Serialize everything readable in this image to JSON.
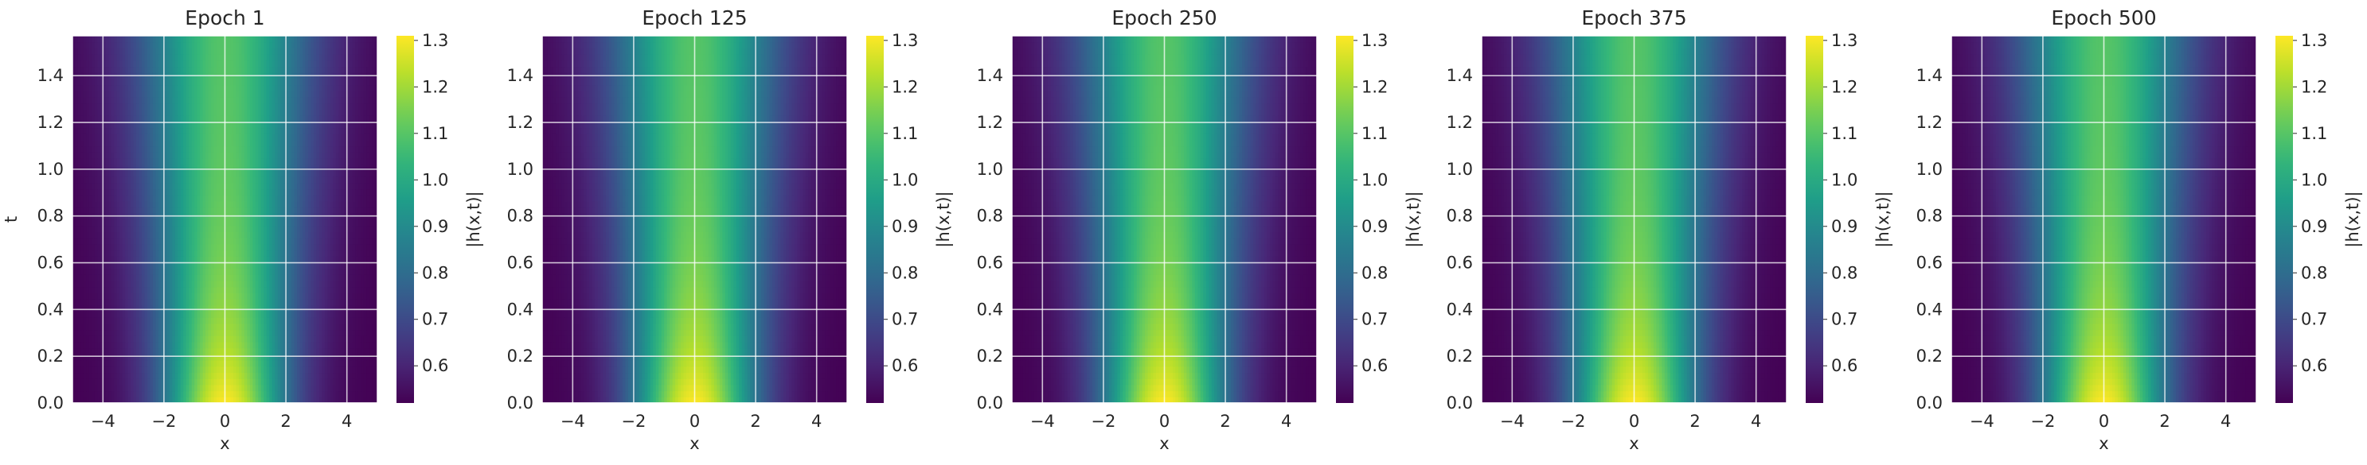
{
  "chart_data": [
    {
      "type": "heatmap",
      "title": "Epoch 1",
      "xlabel": "x",
      "ylabel": "t",
      "colorbar_label": "|h(x,t)|",
      "xlim": [
        -5,
        5
      ],
      "ylim": [
        0,
        1.5708
      ],
      "x_ticks": [
        -4,
        -2,
        0,
        2,
        4
      ],
      "y_ticks": [
        0.0,
        0.2,
        0.4,
        0.6,
        0.8,
        1.0,
        1.2,
        1.4
      ],
      "colorbar_range": [
        0.52,
        1.31
      ],
      "colorbar_ticks": [
        0.6,
        0.7,
        0.8,
        0.9,
        1.0,
        1.1,
        1.2,
        1.3
      ],
      "colormap": "viridis",
      "peak_value": 1.31,
      "min_value": 0.52,
      "grid": true
    },
    {
      "type": "heatmap",
      "title": "Epoch 125",
      "xlabel": "x",
      "ylabel": "",
      "colorbar_label": "|h(x,t)|",
      "xlim": [
        -5,
        5
      ],
      "ylim": [
        0,
        1.5708
      ],
      "x_ticks": [
        -4,
        -2,
        0,
        2,
        4
      ],
      "y_ticks": [
        0.0,
        0.2,
        0.4,
        0.6,
        0.8,
        1.0,
        1.2,
        1.4
      ],
      "colorbar_range": [
        0.52,
        1.31
      ],
      "colorbar_ticks": [
        0.6,
        0.7,
        0.8,
        0.9,
        1.0,
        1.1,
        1.2,
        1.3
      ],
      "colormap": "viridis",
      "peak_value": 1.31,
      "min_value": 0.52,
      "grid": true
    },
    {
      "type": "heatmap",
      "title": "Epoch 250",
      "xlabel": "x",
      "ylabel": "",
      "colorbar_label": "|h(x,t)|",
      "xlim": [
        -5,
        5
      ],
      "ylim": [
        0,
        1.5708
      ],
      "x_ticks": [
        -4,
        -2,
        0,
        2,
        4
      ],
      "y_ticks": [
        0.0,
        0.2,
        0.4,
        0.6,
        0.8,
        1.0,
        1.2,
        1.4
      ],
      "colorbar_range": [
        0.52,
        1.31
      ],
      "colorbar_ticks": [
        0.6,
        0.7,
        0.8,
        0.9,
        1.0,
        1.1,
        1.2,
        1.3
      ],
      "colormap": "viridis",
      "peak_value": 1.31,
      "min_value": 0.52,
      "grid": true
    },
    {
      "type": "heatmap",
      "title": "Epoch 375",
      "xlabel": "x",
      "ylabel": "",
      "colorbar_label": "|h(x,t)|",
      "xlim": [
        -5,
        5
      ],
      "ylim": [
        0,
        1.5708
      ],
      "x_ticks": [
        -4,
        -2,
        0,
        2,
        4
      ],
      "y_ticks": [
        0.0,
        0.2,
        0.4,
        0.6,
        0.8,
        1.0,
        1.2,
        1.4
      ],
      "colorbar_range": [
        0.52,
        1.31
      ],
      "colorbar_ticks": [
        0.6,
        0.7,
        0.8,
        0.9,
        1.0,
        1.1,
        1.2,
        1.3
      ],
      "colormap": "viridis",
      "peak_value": 1.31,
      "min_value": 0.52,
      "grid": true
    },
    {
      "type": "heatmap",
      "title": "Epoch 500",
      "xlabel": "x",
      "ylabel": "",
      "colorbar_label": "|h(x,t)|",
      "xlim": [
        -5,
        5
      ],
      "ylim": [
        0,
        1.5708
      ],
      "x_ticks": [
        -4,
        -2,
        0,
        2,
        4
      ],
      "y_ticks": [
        0.0,
        0.2,
        0.4,
        0.6,
        0.8,
        1.0,
        1.2,
        1.4
      ],
      "colorbar_range": [
        0.52,
        1.31
      ],
      "colorbar_ticks": [
        0.6,
        0.7,
        0.8,
        0.9,
        1.0,
        1.1,
        1.2,
        1.3
      ],
      "colormap": "viridis",
      "peak_value": 1.31,
      "min_value": 0.52,
      "grid": true
    }
  ]
}
